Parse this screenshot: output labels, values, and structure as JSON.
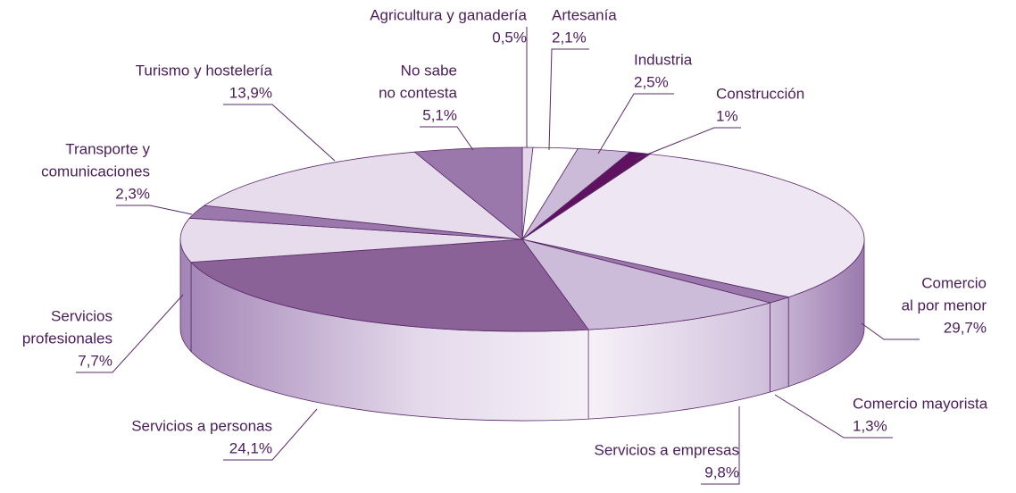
{
  "chart_data": {
    "type": "pie",
    "categories": [
      [
        "Agricultura y ganadería"
      ],
      [
        "Artesanía"
      ],
      [
        "Industria"
      ],
      [
        "Construcción"
      ],
      [
        "Comercio",
        "al por menor"
      ],
      [
        "Comercio mayorista"
      ],
      [
        "Servicios a empresas"
      ],
      [
        "Servicios a personas"
      ],
      [
        "Servicios",
        "profesionales"
      ],
      [
        "Transporte y",
        "comunicaciones"
      ],
      [
        "Turismo y hostelería"
      ],
      [
        "No sabe",
        "no contesta"
      ]
    ],
    "values": [
      0.5,
      2.1,
      2.5,
      1,
      29.7,
      1.3,
      9.8,
      24.1,
      7.7,
      2.3,
      13.9,
      5.1
    ],
    "value_labels": [
      "0,5%",
      "2,1%",
      "2,5%",
      "1%",
      "29,7%",
      "1,3%",
      "9,8%",
      "24,1%",
      "7,7%",
      "2,3%",
      "13,9%",
      "5,1%"
    ],
    "colors": [
      "#e3d8ea",
      "#ffffff",
      "#cbbad8",
      "#5e1260",
      "#eee6f2",
      "#9a78ab",
      "#cdbcd9",
      "#8a6298",
      "#e6dcec",
      "#9a78ab",
      "#e6dcec",
      "#9a78ab"
    ]
  }
}
